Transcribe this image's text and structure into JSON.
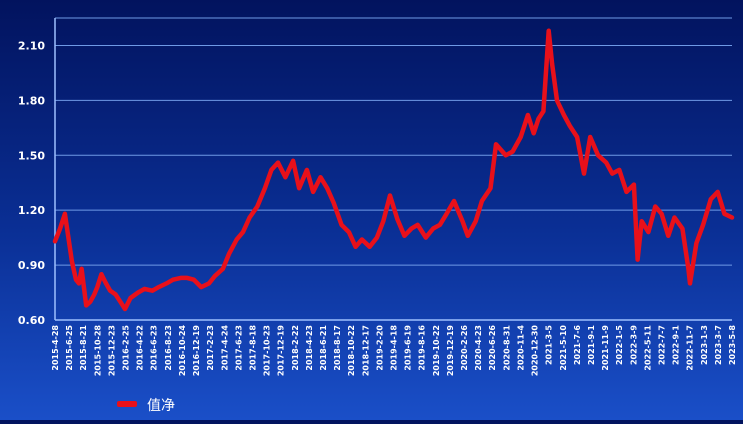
{
  "chart_data": {
    "type": "line",
    "title": "",
    "xlabel": "",
    "ylabel": "",
    "ylim": [
      0.6,
      2.25
    ],
    "yticks": [
      0.6,
      0.9,
      1.2,
      1.5,
      1.8,
      2.1
    ],
    "ytick_labels": [
      "0.60",
      "0.90",
      "1.20",
      "1.50",
      "1.80",
      "2.10"
    ],
    "xtick_labels": [
      "2015-4-28",
      "2015-6-25",
      "2015-8-21",
      "2015-10-28",
      "2015-12-23",
      "2016-2-25",
      "2016-4-22",
      "2016-6-23",
      "2016-8-23",
      "2016-10-24",
      "2016-12-19",
      "2017-2-23",
      "2017-4-24",
      "2017-6-23",
      "2017-8-18",
      "2017-10-23",
      "2017-12-19",
      "2018-2-22",
      "2018-4-23",
      "2018-6-21",
      "2018-8-17",
      "2018-10-22",
      "2018-12-17",
      "2019-2-20",
      "2019-4-18",
      "2019-6-19",
      "2019-8-16",
      "2019-10-22",
      "2019-12-19",
      "2020-2-26",
      "2020-4-23",
      "2020-6-26",
      "2020-8-31",
      "2020-11-4",
      "2020-12-30",
      "2021-3-5",
      "2021-5-10",
      "2021-7-6",
      "2021-9-1",
      "2021-11-9",
      "2022-1-5",
      "2022-3-9",
      "2022-5-11",
      "2022-7-7",
      "2022-9-1",
      "2022-11-7",
      "2023-1-3",
      "2023-3-7",
      "2023-5-8"
    ],
    "grid": true,
    "legend_position": "bottom-left",
    "series": [
      {
        "name": "值净",
        "color": "#e8101a",
        "x": [
          "2015-4-28",
          "2015-5-20",
          "2015-6-10",
          "2015-6-25",
          "2015-7-10",
          "2015-7-28",
          "2015-8-10",
          "2015-8-21",
          "2015-9-10",
          "2015-9-28",
          "2015-10-15",
          "2015-10-28",
          "2015-11-15",
          "2015-12-5",
          "2015-12-23",
          "2016-1-15",
          "2016-2-5",
          "2016-2-25",
          "2016-3-20",
          "2016-4-22",
          "2016-5-20",
          "2016-6-23",
          "2016-7-20",
          "2016-8-23",
          "2016-9-20",
          "2016-10-24",
          "2016-11-20",
          "2016-12-19",
          "2017-1-20",
          "2017-2-23",
          "2017-3-20",
          "2017-4-24",
          "2017-5-20",
          "2017-6-23",
          "2017-7-20",
          "2017-8-18",
          "2017-9-20",
          "2017-10-23",
          "2017-11-20",
          "2017-12-19",
          "2018-1-20",
          "2018-2-22",
          "2018-3-20",
          "2018-4-23",
          "2018-5-20",
          "2018-6-21",
          "2018-7-20",
          "2018-8-17",
          "2018-9-20",
          "2018-10-22",
          "2018-11-20",
          "2018-12-17",
          "2019-1-20",
          "2019-2-20",
          "2019-3-20",
          "2019-4-18",
          "2019-5-20",
          "2019-6-19",
          "2019-7-20",
          "2019-8-16",
          "2019-9-20",
          "2019-10-22",
          "2019-11-20",
          "2019-12-19",
          "2020-1-20",
          "2020-2-26",
          "2020-3-20",
          "2020-4-23",
          "2020-5-20",
          "2020-6-26",
          "2020-7-20",
          "2020-8-31",
          "2020-9-30",
          "2020-11-4",
          "2020-12-5",
          "2020-12-30",
          "2021-1-20",
          "2021-2-10",
          "2021-3-5",
          "2021-3-20",
          "2021-4-10",
          "2021-5-10",
          "2021-6-5",
          "2021-7-6",
          "2021-8-5",
          "2021-9-1",
          "2021-10-5",
          "2021-11-9",
          "2021-12-5",
          "2022-1-5",
          "2022-2-5",
          "2022-3-9",
          "2022-3-25",
          "2022-4-12",
          "2022-5-11",
          "2022-6-10",
          "2022-7-7",
          "2022-8-5",
          "2022-9-1",
          "2022-10-5",
          "2022-10-31",
          "2022-11-7",
          "2022-12-5",
          "2023-1-3",
          "2023-2-5",
          "2023-3-7",
          "2023-4-5",
          "2023-5-8"
        ],
        "values": [
          1.03,
          1.1,
          1.18,
          1.05,
          0.92,
          0.82,
          0.8,
          0.88,
          0.68,
          0.7,
          0.74,
          0.78,
          0.85,
          0.8,
          0.76,
          0.74,
          0.7,
          0.66,
          0.72,
          0.75,
          0.77,
          0.76,
          0.78,
          0.8,
          0.82,
          0.83,
          0.83,
          0.82,
          0.78,
          0.8,
          0.84,
          0.88,
          0.96,
          1.04,
          1.08,
          1.16,
          1.22,
          1.32,
          1.42,
          1.46,
          1.38,
          1.47,
          1.32,
          1.42,
          1.3,
          1.38,
          1.32,
          1.24,
          1.12,
          1.08,
          1.0,
          1.04,
          1.0,
          1.05,
          1.14,
          1.28,
          1.15,
          1.06,
          1.1,
          1.12,
          1.05,
          1.1,
          1.12,
          1.18,
          1.25,
          1.14,
          1.06,
          1.14,
          1.25,
          1.32,
          1.56,
          1.5,
          1.52,
          1.6,
          1.72,
          1.62,
          1.7,
          1.74,
          2.18,
          2.0,
          1.8,
          1.72,
          1.66,
          1.6,
          1.4,
          1.6,
          1.5,
          1.46,
          1.4,
          1.42,
          1.3,
          1.34,
          0.93,
          1.14,
          1.08,
          1.22,
          1.18,
          1.06,
          1.16,
          1.1,
          0.88,
          0.8,
          1.02,
          1.12,
          1.26,
          1.3,
          1.18,
          1.16
        ]
      }
    ]
  }
}
